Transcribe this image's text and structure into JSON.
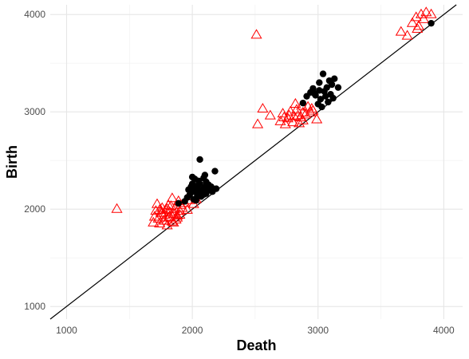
{
  "chart_data": {
    "type": "scatter",
    "title": "",
    "xlabel": "Death",
    "ylabel": "Birth",
    "xlim": [
      870,
      4150
    ],
    "ylim": [
      870,
      4100
    ],
    "x_ticks": [
      1000,
      2000,
      3000,
      4000
    ],
    "y_ticks": [
      1000,
      2000,
      3000,
      4000
    ],
    "x_tick_labels": [
      "1000",
      "2000",
      "3000",
      "4000"
    ],
    "y_tick_labels": [
      "1000",
      "2000",
      "3000",
      "4000"
    ],
    "grid": true,
    "legend": "none",
    "reference_line": {
      "type": "diagonal",
      "slope": 1,
      "intercept": 0,
      "color": "#000000"
    },
    "series": [
      {
        "marker": "triangle-open",
        "color": "#ff0000",
        "points": [
          [
            1400,
            2000
          ],
          [
            2510,
            3790
          ],
          [
            1690,
            1860
          ],
          [
            1700,
            1920
          ],
          [
            1710,
            1980
          ],
          [
            1720,
            2050
          ],
          [
            1730,
            1900
          ],
          [
            1740,
            1850
          ],
          [
            1750,
            1960
          ],
          [
            1760,
            2010
          ],
          [
            1770,
            1880
          ],
          [
            1780,
            1940
          ],
          [
            1790,
            1990
          ],
          [
            1800,
            1830
          ],
          [
            1810,
            1910
          ],
          [
            1820,
            1970
          ],
          [
            1830,
            2030
          ],
          [
            1840,
            1870
          ],
          [
            1850,
            1950
          ],
          [
            1860,
            2000
          ],
          [
            1870,
            1890
          ],
          [
            1880,
            1930
          ],
          [
            1890,
            2080
          ],
          [
            1900,
            1980
          ],
          [
            1910,
            2040
          ],
          [
            1840,
            2110
          ],
          [
            1760,
            1960
          ],
          [
            1780,
            1880
          ],
          [
            1800,
            2000
          ],
          [
            1820,
            1920
          ],
          [
            1860,
            1950
          ],
          [
            1880,
            1910
          ],
          [
            1920,
            2010
          ],
          [
            1940,
            2060
          ],
          [
            1960,
            1990
          ],
          [
            1980,
            2090
          ],
          [
            2010,
            2050
          ],
          [
            2030,
            2100
          ],
          [
            1970,
            2130
          ],
          [
            1740,
            1990
          ],
          [
            1810,
            2040
          ],
          [
            1850,
            1860
          ],
          [
            1900,
            1940
          ],
          [
            2520,
            2870
          ],
          [
            2560,
            3030
          ],
          [
            2620,
            2960
          ],
          [
            2700,
            2900
          ],
          [
            2720,
            2980
          ],
          [
            2740,
            2870
          ],
          [
            2760,
            2930
          ],
          [
            2780,
            3000
          ],
          [
            2800,
            2890
          ],
          [
            2810,
            2950
          ],
          [
            2830,
            3020
          ],
          [
            2850,
            2880
          ],
          [
            2860,
            2940
          ],
          [
            2880,
            2910
          ],
          [
            2900,
            2970
          ],
          [
            2920,
            3050
          ],
          [
            2940,
            2990
          ],
          [
            2960,
            3010
          ],
          [
            2990,
            2920
          ],
          [
            2840,
            2960
          ],
          [
            2870,
            3060
          ],
          [
            2770,
            2960
          ],
          [
            2730,
            2940
          ],
          [
            2880,
            2990
          ],
          [
            2950,
            3030
          ],
          [
            2820,
            3080
          ],
          [
            3660,
            3820
          ],
          [
            3710,
            3780
          ],
          [
            3750,
            3910
          ],
          [
            3780,
            3970
          ],
          [
            3800,
            3880
          ],
          [
            3820,
            4000
          ],
          [
            3840,
            3950
          ],
          [
            3860,
            4020
          ],
          [
            3900,
            4000
          ],
          [
            3790,
            3850
          ]
        ]
      },
      {
        "marker": "circle-filled",
        "color": "#000000",
        "points": [
          [
            1890,
            2060
          ],
          [
            1940,
            2080
          ],
          [
            1960,
            2120
          ],
          [
            1980,
            2150
          ],
          [
            1990,
            2230
          ],
          [
            2000,
            2330
          ],
          [
            2010,
            2180
          ],
          [
            2020,
            2210
          ],
          [
            2030,
            2090
          ],
          [
            2040,
            2140
          ],
          [
            2050,
            2290
          ],
          [
            2060,
            2260
          ],
          [
            2060,
            2510
          ],
          [
            2070,
            2170
          ],
          [
            2080,
            2200
          ],
          [
            2090,
            2320
          ],
          [
            2100,
            2230
          ],
          [
            2100,
            2350
          ],
          [
            2110,
            2160
          ],
          [
            2120,
            2190
          ],
          [
            2130,
            2250
          ],
          [
            2140,
            2210
          ],
          [
            2160,
            2180
          ],
          [
            2180,
            2390
          ],
          [
            2190,
            2210
          ],
          [
            1970,
            2200
          ],
          [
            2000,
            2260
          ],
          [
            2020,
            2310
          ],
          [
            2040,
            2240
          ],
          [
            2070,
            2130
          ],
          [
            2090,
            2150
          ],
          [
            2110,
            2280
          ],
          [
            2150,
            2230
          ],
          [
            2010,
            2100
          ],
          [
            2050,
            2200
          ],
          [
            2880,
            3090
          ],
          [
            2910,
            3160
          ],
          [
            2940,
            3200
          ],
          [
            2960,
            3240
          ],
          [
            2980,
            3170
          ],
          [
            3000,
            3080
          ],
          [
            3010,
            3300
          ],
          [
            3020,
            3130
          ],
          [
            3030,
            3050
          ],
          [
            3040,
            3390
          ],
          [
            3050,
            3210
          ],
          [
            3060,
            3160
          ],
          [
            3070,
            3250
          ],
          [
            3080,
            3100
          ],
          [
            3090,
            3320
          ],
          [
            3100,
            3180
          ],
          [
            3110,
            3280
          ],
          [
            3120,
            3140
          ],
          [
            3130,
            3340
          ],
          [
            3160,
            3250
          ],
          [
            3010,
            3220
          ],
          [
            2970,
            3190
          ],
          [
            3900,
            3910
          ]
        ]
      }
    ]
  }
}
